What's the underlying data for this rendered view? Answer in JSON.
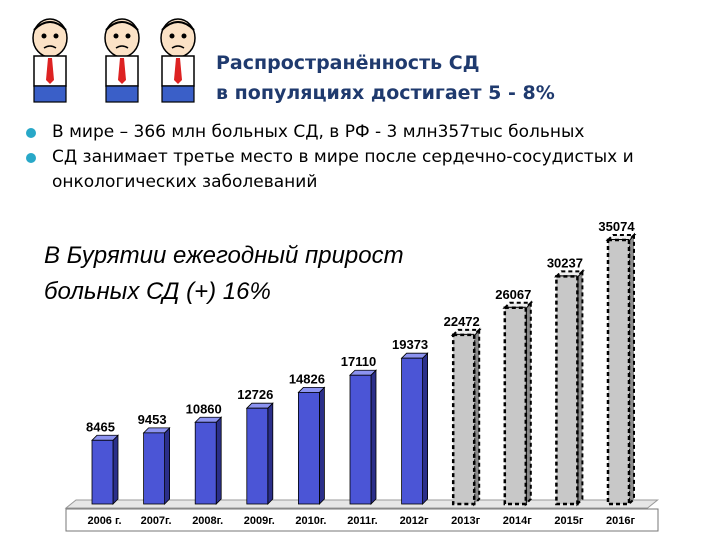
{
  "slide": {
    "title_line1": "Распространённость СД",
    "title_line2": "в популяциях достигает 5 - 8%",
    "bullets": [
      "В мире – 366 млн больных СД, в РФ  - 3 млн357тыс больных",
      "СД занимает третье место в мире после сердечно-сосудистых и онкологических заболеваний"
    ],
    "subtitle_line1": "В Бурятии ежегодный прирост",
    "subtitle_line2": "больных СД (+) 16%"
  },
  "chart_data": {
    "type": "bar",
    "categories": [
      "2006 г.",
      "2007г.",
      "2008г.",
      "2009г.",
      "2010г.",
      "2011г.",
      "2012г",
      "2013г",
      "2014г",
      "2015г",
      "2016г"
    ],
    "values": [
      8465,
      9453,
      10860,
      12726,
      14826,
      17110,
      19373,
      22472,
      26067,
      30237,
      35074
    ],
    "value_labels": [
      "8465",
      "9453",
      "10860",
      "12726",
      "14826",
      "17110",
      "19373",
      "22472",
      "26067",
      "30237",
      "35074"
    ],
    "ylim": [
      0,
      35074
    ],
    "grid": false,
    "style": {
      "actual_color": "#4b55d6",
      "forecast_color": "#c8c8c8",
      "forecast_from_index": 7
    }
  }
}
